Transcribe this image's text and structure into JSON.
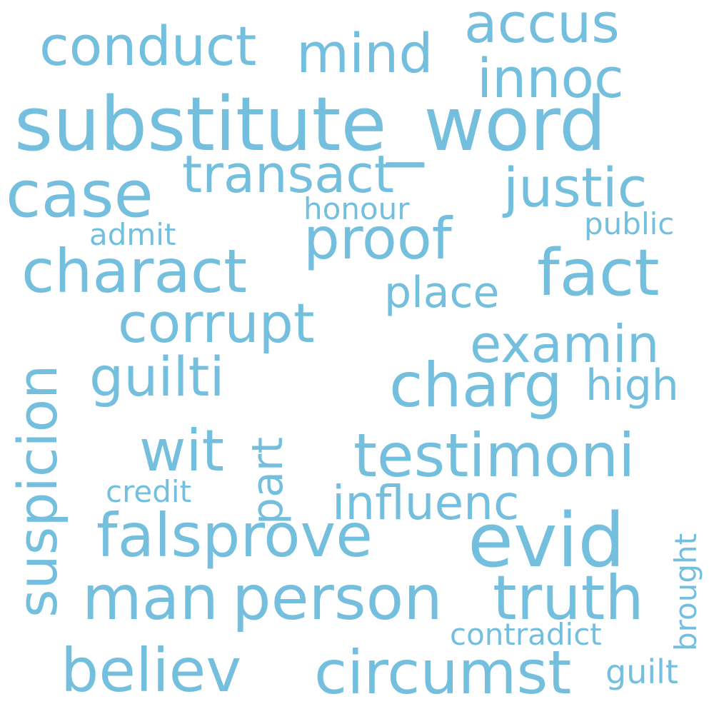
{
  "cloud": {
    "color": "#74bfdd",
    "words": [
      "substitute_word",
      "evid",
      "man",
      "person",
      "case",
      "charact",
      "fact",
      "charg",
      "testimoni",
      "truth",
      "falsprove",
      "believ",
      "circumst",
      "proof",
      "conduct",
      "mind",
      "accus",
      "innoc",
      "transact",
      "justic",
      "corrupt",
      "guilti",
      "examin",
      "suspicion",
      "wit",
      "influenc",
      "place",
      "high",
      "part",
      "guilt",
      "contradict",
      "credit",
      "honour",
      "admit",
      "public",
      "brought"
    ]
  }
}
